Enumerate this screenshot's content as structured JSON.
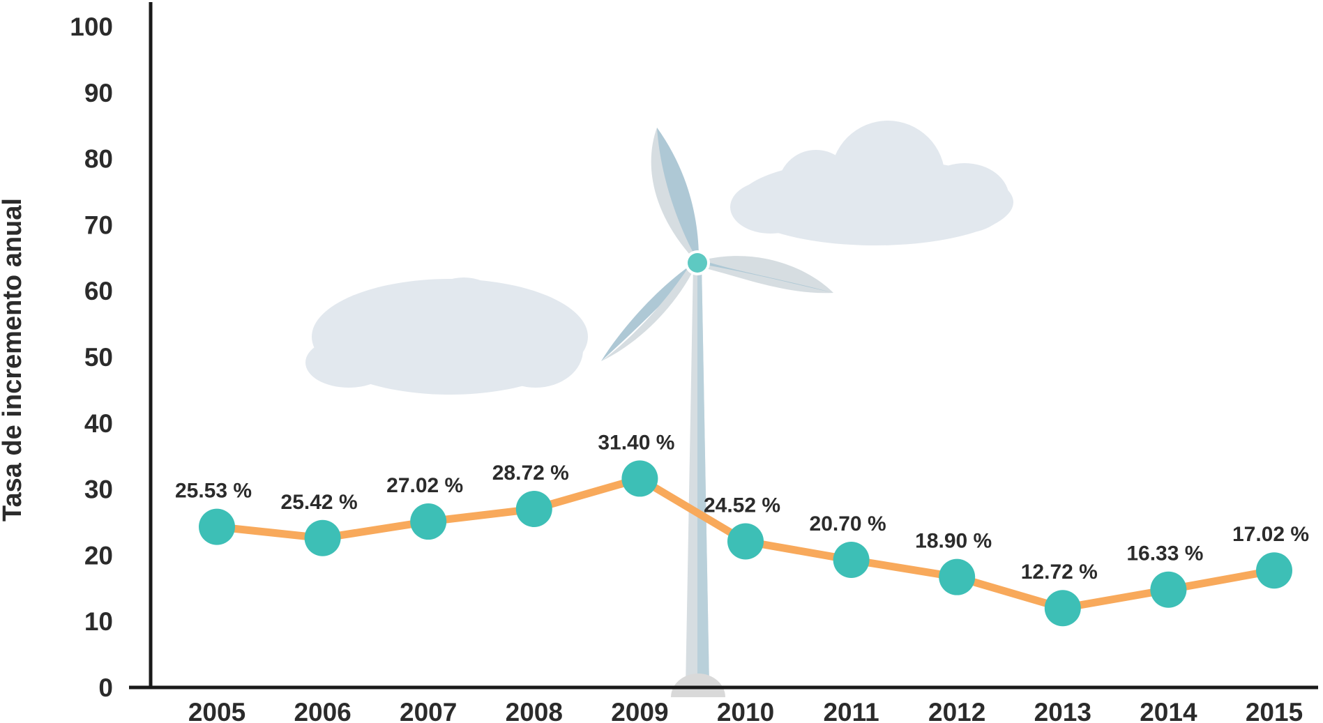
{
  "chart_data": {
    "type": "line",
    "title": "",
    "xlabel": "",
    "ylabel": "Tasa de incremento anual",
    "ylim": [
      0,
      100
    ],
    "y_ticks": [
      "0",
      "10",
      "20",
      "30",
      "40",
      "50",
      "60",
      "70",
      "80",
      "90",
      "100"
    ],
    "categories": [
      "2005",
      "2006",
      "2007",
      "2008",
      "2009",
      "2010",
      "2011",
      "2012",
      "2013",
      "2014",
      "2015"
    ],
    "values": [
      25.53,
      25.42,
      27.02,
      28.72,
      31.4,
      24.52,
      20.7,
      18.9,
      12.72,
      16.33,
      17.02
    ],
    "point_values": [
      24.3,
      22.6,
      25.1,
      27.0,
      31.6,
      22.1,
      19.3,
      16.7,
      12.0,
      14.8,
      17.7
    ],
    "data_labels": [
      "25.53 %",
      "25.42 %",
      "27.02 %",
      "28.72 %",
      "31.40 %",
      "24.52 %",
      "20.70 %",
      "18.90 %",
      "12.72 %",
      "16.33 %",
      "17.02 %"
    ],
    "grid": false,
    "legend": "none",
    "colors": {
      "line": "#f8a95b",
      "marker": "#3dbfb6",
      "axis": "#1a1a1a",
      "text": "#2b2b2b",
      "cloud": "#e2e8ee",
      "turbine_blade": "#aec8d5",
      "turbine_blade_shadow": "#d7dde1",
      "turbine_hub": "#5ec9c2"
    },
    "decorations": [
      "wind-turbine",
      "cloud",
      "cloud"
    ]
  }
}
